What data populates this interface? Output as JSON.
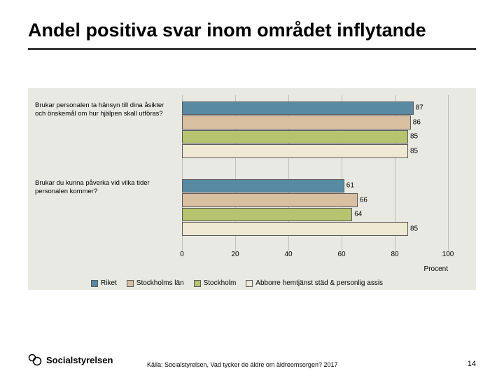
{
  "title": "Andel positiva svar inom området inflytande",
  "chart": {
    "type": "bar",
    "orientation": "horizontal",
    "background_color": "#e9e9e3",
    "grid_color": "#bfbfb9",
    "xlim": [
      0,
      100
    ],
    "xticks": [
      0,
      20,
      40,
      60,
      80,
      100
    ],
    "x_axis_label": "Procent",
    "bar_height_ratio": 0.95,
    "group_gap_ratio": 0.35,
    "value_label_fontsize": 10,
    "ylabel_fontsize": 9.5,
    "category_labels": [
      "Brukar personalen ta hänsyn till dina åsikter och önskemål om hur hjälpen skall utföras?",
      "Brukar du kunna påverka vid vilka tider personalen kommer?"
    ],
    "series": [
      {
        "name": "Riket",
        "color": "#588aa3"
      },
      {
        "name": "Stockholms län",
        "color": "#d7bfa0"
      },
      {
        "name": "Stockholm",
        "color": "#b7c46f"
      },
      {
        "name": "Abborre hemtjänst städ & personlig assis",
        "color": "#efe8d2"
      }
    ],
    "values": [
      [
        87,
        86,
        85,
        85
      ],
      [
        61,
        66,
        64,
        85
      ]
    ]
  },
  "legend": {
    "items": [
      "Riket",
      "Stockholms län",
      "Stockholm",
      "Abborre hemtjänst städ & personlig assis"
    ]
  },
  "footer": {
    "logo_text": "Socialstyrelsen",
    "source": "Källa: Socialstyrelsen, Vad tycker de äldre om äldreomsorgen? 2017",
    "page_number": "14"
  }
}
